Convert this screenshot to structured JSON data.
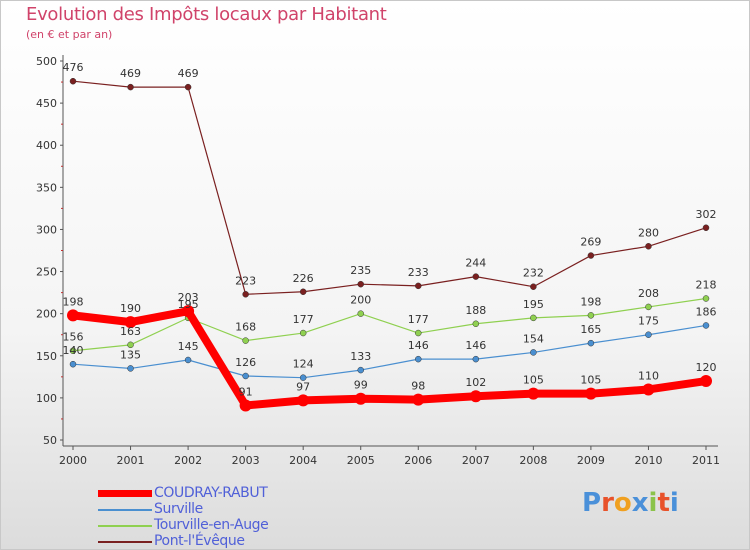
{
  "title": "Evolution des Impôts locaux par Habitant",
  "subtitle": "(en € et par an)",
  "logo": {
    "letters": [
      "P",
      "r",
      "o",
      "x",
      "i",
      "t",
      "i"
    ],
    "colors": [
      "#4a90d9",
      "#e8522a",
      "#f0a020",
      "#4a90d9",
      "#8bc34a",
      "#e8522a",
      "#4a90d9"
    ]
  },
  "chart_data": {
    "type": "line",
    "title": "Evolution des Impôts locaux par Habitant",
    "subtitle": "(en € et par an)",
    "xlabel": "",
    "ylabel": "",
    "categories": [
      "2000",
      "2001",
      "2002",
      "2003",
      "2004",
      "2005",
      "2006",
      "2007",
      "2008",
      "2009",
      "2010",
      "2011"
    ],
    "ylim": [
      50,
      500
    ],
    "yticks": [
      50,
      100,
      150,
      200,
      250,
      300,
      350,
      400,
      450,
      500
    ],
    "grid": false,
    "legend": "bottom-left",
    "series": [
      {
        "name": "COUDRAY-RABUT",
        "color": "#ff0000",
        "emphasis": true,
        "values": [
          198,
          190,
          203,
          91,
          97,
          99,
          98,
          102,
          105,
          105,
          110,
          120
        ],
        "labels": [
          "198",
          "190",
          "203",
          "91",
          "97",
          "99",
          "98",
          "102",
          "105",
          "105",
          "110",
          "120"
        ]
      },
      {
        "name": "Surville",
        "color": "#4a8fd0",
        "emphasis": false,
        "values": [
          140,
          135,
          145,
          126,
          124,
          133,
          146,
          146,
          154,
          165,
          175,
          186
        ],
        "labels": [
          "140",
          "135",
          "145",
          "126",
          "124",
          "133",
          "146",
          "146",
          "154",
          "165",
          "175",
          "186"
        ]
      },
      {
        "name": "Tourville-en-Auge",
        "color": "#8fd050",
        "emphasis": false,
        "values": [
          156,
          163,
          195,
          168,
          177,
          200,
          177,
          188,
          195,
          198,
          208,
          218
        ],
        "labels": [
          "156",
          "163",
          "195",
          "168",
          "177",
          "200",
          "177",
          "188",
          "195",
          "198",
          "208",
          "218"
        ]
      },
      {
        "name": "Pont-l'Évêque",
        "color": "#7a2020",
        "emphasis": false,
        "values": [
          476,
          469,
          469,
          223,
          226,
          235,
          233,
          244,
          232,
          269,
          280,
          302
        ],
        "labels": [
          "476",
          "469",
          "469",
          "223",
          "226",
          "235",
          "233",
          "244",
          "232",
          "269",
          "280",
          "302"
        ]
      }
    ]
  }
}
